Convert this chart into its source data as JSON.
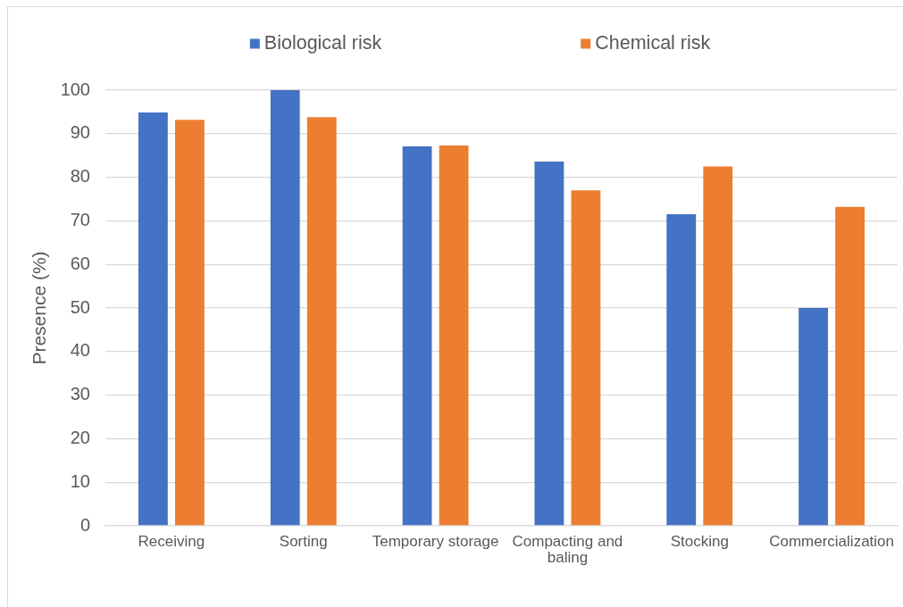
{
  "chart_data": {
    "type": "bar",
    "categories": [
      "Receiving",
      "Sorting",
      "Temporary storage",
      "Compacting and baling",
      "Stocking",
      "Commercialization"
    ],
    "series": [
      {
        "name": "Biological risk",
        "color": "#4472c4",
        "values": [
          94.9,
          100,
          87.1,
          83.6,
          71.5,
          50
        ]
      },
      {
        "name": "Chemical risk",
        "color": "#ed7d31",
        "values": [
          93.2,
          93.8,
          87.3,
          77.0,
          82.5,
          73.2
        ]
      }
    ],
    "ylabel": "Presence (%)",
    "ylim": [
      0,
      100
    ],
    "yticks": [
      0,
      10,
      20,
      30,
      40,
      50,
      60,
      70,
      80,
      90,
      100
    ],
    "grid": "y",
    "legend": "top"
  }
}
